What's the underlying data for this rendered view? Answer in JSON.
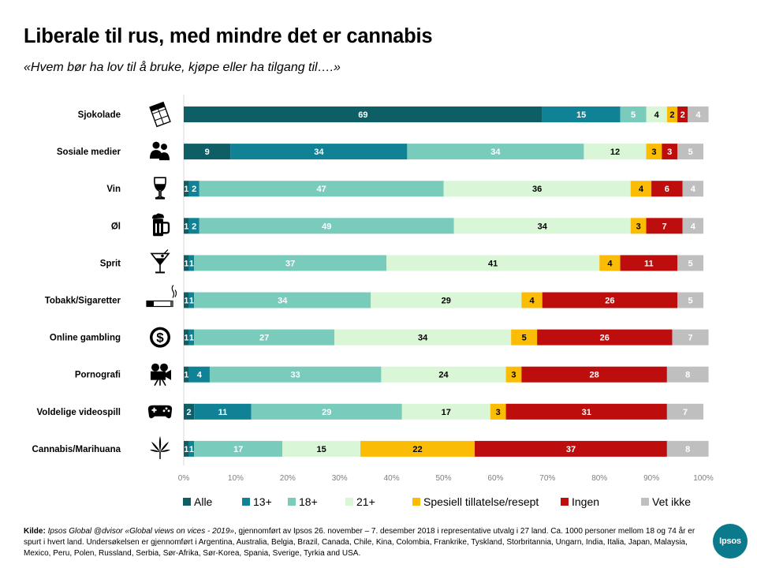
{
  "title": "Liberale til rus, med mindre det er cannabis",
  "subtitle": "«Hvem bør ha lov til å bruke, kjøpe eller ha tilgang til….»",
  "colors": {
    "alle": "#0e5e66",
    "13+": "#0f8296",
    "18+": "#79cbbc",
    "21+": "#d9f6d7",
    "spesiell": "#fbbc05",
    "ingen": "#be0d0d",
    "vet_ikke": "#bfbfbf",
    "text_light": "#ffffff",
    "text_dark": "#000000"
  },
  "chart_data": {
    "type": "bar",
    "orientation": "horizontal",
    "stacked": true,
    "title": "Liberale til rus, med mindre det er cannabis",
    "subtitle": "«Hvem bør ha lov til å bruke, kjøpe eller ha tilgang til….»",
    "xlim": [
      0,
      100
    ],
    "x_ticks": [
      "0%",
      "10%",
      "20%",
      "30%",
      "40%",
      "50%",
      "60%",
      "70%",
      "80%",
      "90%",
      "100%"
    ],
    "legend_position": "bottom",
    "categories": [
      {
        "label": "Sjokolade",
        "icon": "chocolate-bar-icon"
      },
      {
        "label": "Sosiale  medier",
        "icon": "people-icon"
      },
      {
        "label": "Vin",
        "icon": "wine-glass-icon"
      },
      {
        "label": "Øl",
        "icon": "beer-mug-icon"
      },
      {
        "label": "Sprit",
        "icon": "cocktail-glass-icon"
      },
      {
        "label": "Tobakk/Sigaretter",
        "icon": "cigarette-icon"
      },
      {
        "label": "Online gambling",
        "icon": "dollar-coin-icon"
      },
      {
        "label": "Pornografi",
        "icon": "movie-camera-icon"
      },
      {
        "label": "Voldelige videospill",
        "icon": "gamepad-icon"
      },
      {
        "label": "Cannabis/Marihuana",
        "icon": "cannabis-leaf-icon"
      }
    ],
    "series": [
      {
        "key": "alle",
        "name": "Alle",
        "values": [
          69,
          9,
          1,
          1,
          1,
          1,
          1,
          1,
          2,
          1
        ]
      },
      {
        "key": "13+",
        "name": "13+",
        "values": [
          15,
          34,
          2,
          2,
          1,
          1,
          1,
          4,
          11,
          1
        ]
      },
      {
        "key": "18+",
        "name": "18+",
        "values": [
          5,
          34,
          47,
          49,
          37,
          34,
          27,
          33,
          29,
          17
        ]
      },
      {
        "key": "21+",
        "name": "21+",
        "values": [
          4,
          12,
          36,
          34,
          41,
          29,
          34,
          24,
          17,
          15
        ]
      },
      {
        "key": "spesiell",
        "name": "Spesiell tillatelse/resept",
        "values": [
          2,
          3,
          4,
          3,
          4,
          4,
          5,
          3,
          3,
          22
        ]
      },
      {
        "key": "ingen",
        "name": "Ingen",
        "values": [
          2,
          3,
          6,
          7,
          11,
          26,
          26,
          28,
          31,
          37
        ]
      },
      {
        "key": "vet_ikke",
        "name": "Vet ikke",
        "values": [
          4,
          5,
          4,
          4,
          5,
          5,
          7,
          8,
          7,
          8
        ]
      }
    ]
  },
  "source": {
    "label": "Kilde:",
    "italic_part": "Ipsos Global @dvisor «Global views on vices - 2019»",
    "text": ", gjennomført av Ipsos 26. november – 7. desember 2018 i representative utvalg i 27 land. Ca. 1000 personer mellom 18 og 74 år er spurt i hvert land. Undersøkelsen er gjennomført i Argentina, Australia, Belgia, Brazil, Canada, Chile, Kina, Colombia, Frankrike, Tyskland, Storbritannia, Ungarn, India, Italia, Japan, Malaysia, Mexico, Peru, Polen, Russland, Serbia, Sør-Afrika, Sør-Korea, Spania, Sverige, Tyrkia and USA."
  },
  "logo": {
    "text": "Ipsos"
  }
}
